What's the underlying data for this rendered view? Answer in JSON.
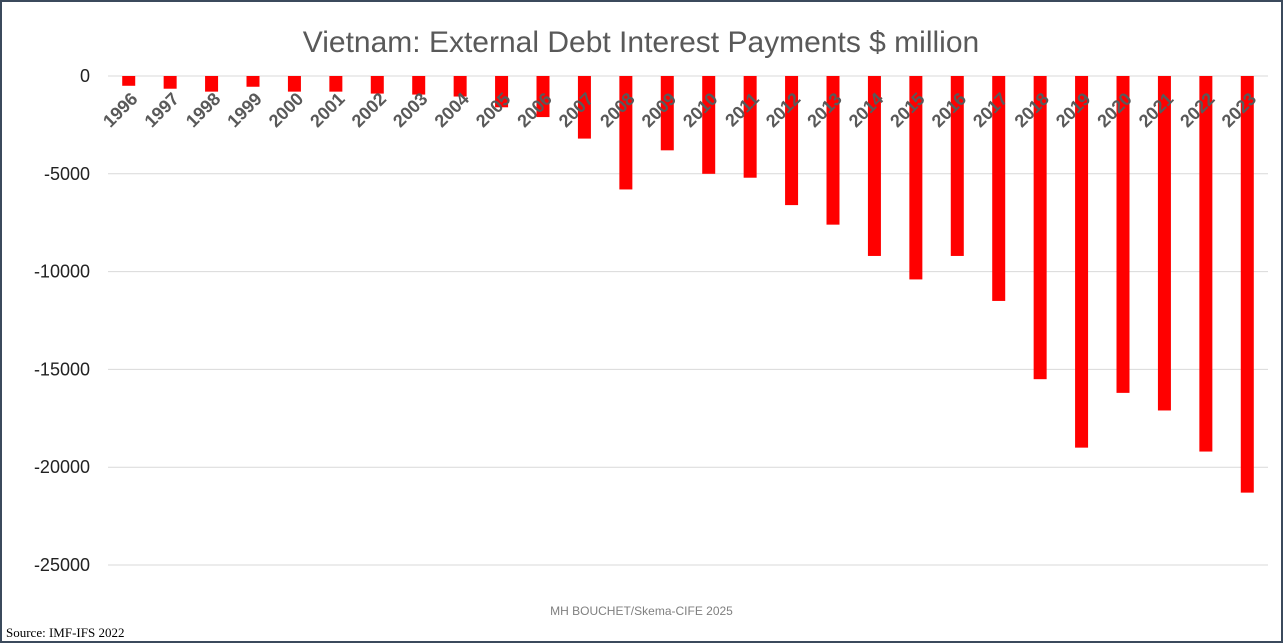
{
  "chart_data": {
    "type": "bar",
    "title": "Vietnam: External Debt Interest Payments $ million",
    "xlabel": "",
    "ylabel": "",
    "categories": [
      "1996",
      "1997",
      "1998",
      "1999",
      "2000",
      "2001",
      "2002",
      "2003",
      "2004",
      "2005",
      "2006",
      "2007",
      "2008",
      "2009",
      "2010",
      "2011",
      "2012",
      "2013",
      "2014",
      "2015",
      "2016",
      "2017",
      "2018",
      "2019",
      "2020",
      "2021",
      "2022",
      "2023"
    ],
    "values": [
      -500,
      -650,
      -800,
      -550,
      -800,
      -800,
      -900,
      -950,
      -1050,
      -1600,
      -2100,
      -3200,
      -5800,
      -3800,
      -5000,
      -5200,
      -6600,
      -7600,
      -9200,
      -10400,
      -9200,
      -11500,
      -15500,
      -19000,
      -16200,
      -17100,
      -19200,
      -21300
    ],
    "yticks": [
      0,
      -5000,
      -10000,
      -15000,
      -20000,
      -25000
    ],
    "ylim": [
      -25000,
      0
    ],
    "grid": true,
    "bar_color": "#ff0000",
    "gridline_color": "#d9d9d9"
  },
  "footer": {
    "credit": "MH BOUCHET/Skema-CIFE 2025",
    "source": "Source: IMF-IFS 2022"
  }
}
